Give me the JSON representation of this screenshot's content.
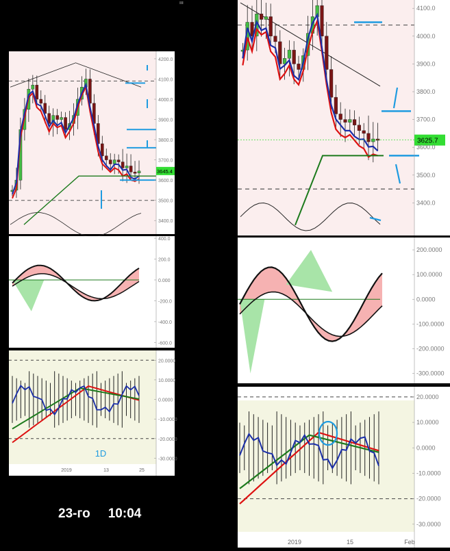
{
  "caption": {
    "day": "23-го",
    "time": "10:04"
  },
  "top_mark": "ııı",
  "timeframe_label": "1D",
  "last_price_small": "3645.4",
  "last_price_large": "3625.7",
  "colors": {
    "bull": "#44bb44",
    "bear": "#7a1515",
    "blue": "#1a2ea8",
    "red": "#dd1111",
    "green": "#1c7a1c",
    "accent": "#1e9be0",
    "price_tag": "#33dd33",
    "band_red": "#f4a5a5",
    "band_green": "#a8e4a8",
    "cci_bg": "#f4f5e2"
  },
  "chart_data": [
    {
      "type": "candlestick",
      "panel": "small-price",
      "x_ticks": [
        "2019",
        "13",
        "25"
      ],
      "y_ticks": [
        "4200.0",
        "4100.0",
        "4000.0",
        "3900.0",
        "3800.0",
        "3700.0",
        "3600.0",
        "3500.0",
        "3400.0"
      ],
      "ylim": [
        3350,
        4220
      ],
      "closes": [
        3550,
        3600,
        3850,
        3950,
        4050,
        4070,
        4000,
        3980,
        3930,
        3880,
        3920,
        3900,
        3910,
        3850,
        3880,
        3920,
        4000,
        4060,
        4100,
        3980,
        3880,
        3780,
        3720,
        3700,
        3680,
        3700,
        3690,
        3660,
        3670,
        3640,
        3635,
        3645
      ],
      "levels": [
        4080,
        3850,
        3760,
        3660,
        3600,
        3500
      ],
      "dashed_levels": [
        4090,
        3500
      ]
    },
    {
      "type": "area",
      "panel": "small-macd",
      "y_ticks": [
        "400.0",
        "200.0",
        "0.000",
        "-200.0",
        "-400.0",
        "-600.0"
      ],
      "ylim": [
        -650,
        420
      ]
    },
    {
      "type": "line",
      "panel": "small-cci",
      "y_ticks": [
        "20.0000",
        "10.0000",
        "0.0000",
        "-10.0000",
        "-20.0000",
        "-30.0000"
      ],
      "ylim": [
        -33,
        25
      ]
    },
    {
      "type": "candlestick",
      "panel": "large-price",
      "x_ticks": [
        "2019",
        "15",
        "Feb"
      ],
      "y_ticks": [
        "4100.0",
        "4000.0",
        "3900.0",
        "3800.0",
        "3700.0",
        "3600.0",
        "3500.0",
        "3400.0"
      ],
      "ylim": [
        3300,
        4130
      ],
      "closes": [
        3950,
        4050,
        4000,
        4080,
        4060,
        4070,
        4000,
        3980,
        3900,
        3920,
        3950,
        3900,
        3880,
        3930,
        4010,
        4070,
        4110,
        4000,
        3880,
        3780,
        3720,
        3700,
        3690,
        3700,
        3680,
        3660,
        3650,
        3620,
        3630,
        3625
      ],
      "levels": [
        4050,
        3730,
        3570,
        3455
      ],
      "dashed_levels": [
        4040,
        3450
      ]
    },
    {
      "type": "area",
      "panel": "large-macd",
      "y_ticks": [
        "200.0000",
        "100.0000",
        "0.0000",
        "-100.0000",
        "-200.0000",
        "-300.0000"
      ],
      "ylim": [
        -340,
        250
      ]
    },
    {
      "type": "line",
      "panel": "large-cci",
      "x_ticks": [
        "2019",
        "15",
        "Feb"
      ],
      "y_ticks": [
        "20.0000",
        "10.0000",
        "0.0000",
        "-10.0000",
        "-20.0000",
        "-30.0000"
      ],
      "ylim": [
        -33,
        24
      ]
    }
  ]
}
